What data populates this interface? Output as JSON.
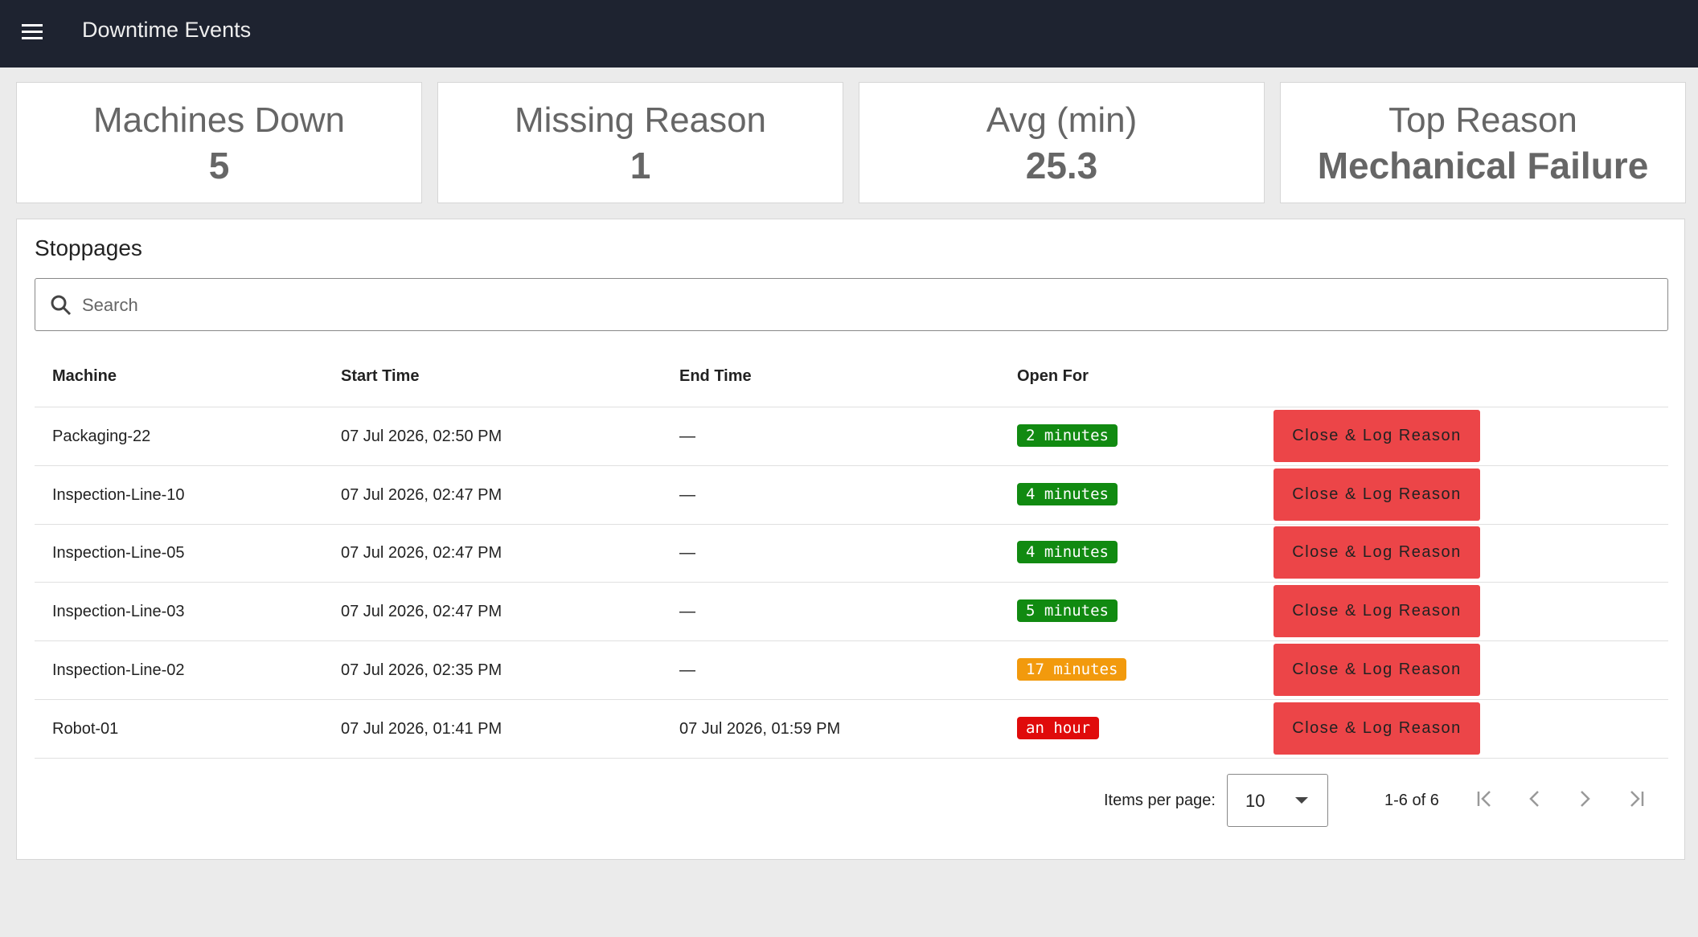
{
  "header": {
    "title": "Downtime Events"
  },
  "cards": [
    {
      "label": "Machines Down",
      "value": "5"
    },
    {
      "label": "Missing Reason",
      "value": "1"
    },
    {
      "label": "Avg (min)",
      "value": "25.3"
    },
    {
      "label": "Top Reason",
      "value": "Mechanical Failure"
    }
  ],
  "panel": {
    "title": "Stoppages",
    "search_placeholder": "Search"
  },
  "table": {
    "columns": [
      "Machine",
      "Start Time",
      "End Time",
      "Open For"
    ],
    "rows": [
      {
        "machine": "Packaging-22",
        "start": "07 Jul 2026, 02:50 PM",
        "end": "—",
        "open_for": "2 minutes",
        "badge_color": "#118a11",
        "action": "Close & Log Reason"
      },
      {
        "machine": "Inspection-Line-10",
        "start": "07 Jul 2026, 02:47 PM",
        "end": "—",
        "open_for": "4 minutes",
        "badge_color": "#118a11",
        "action": "Close & Log Reason"
      },
      {
        "machine": "Inspection-Line-05",
        "start": "07 Jul 2026, 02:47 PM",
        "end": "—",
        "open_for": "4 minutes",
        "badge_color": "#118a11",
        "action": "Close & Log Reason"
      },
      {
        "machine": "Inspection-Line-03",
        "start": "07 Jul 2026, 02:47 PM",
        "end": "—",
        "open_for": "5 minutes",
        "badge_color": "#118a11",
        "action": "Close & Log Reason"
      },
      {
        "machine": "Inspection-Line-02",
        "start": "07 Jul 2026, 02:35 PM",
        "end": "—",
        "open_for": "17 minutes",
        "badge_color": "#f29a0d",
        "action": "Close & Log Reason"
      },
      {
        "machine": "Robot-01",
        "start": "07 Jul 2026, 01:41 PM",
        "end": "07 Jul 2026, 01:59 PM",
        "open_for": "an hour",
        "badge_color": "#e00b0b",
        "action": "Close & Log Reason"
      }
    ]
  },
  "pagination": {
    "items_label": "Items per page:",
    "page_size": "10",
    "range": "1-6 of 6"
  }
}
